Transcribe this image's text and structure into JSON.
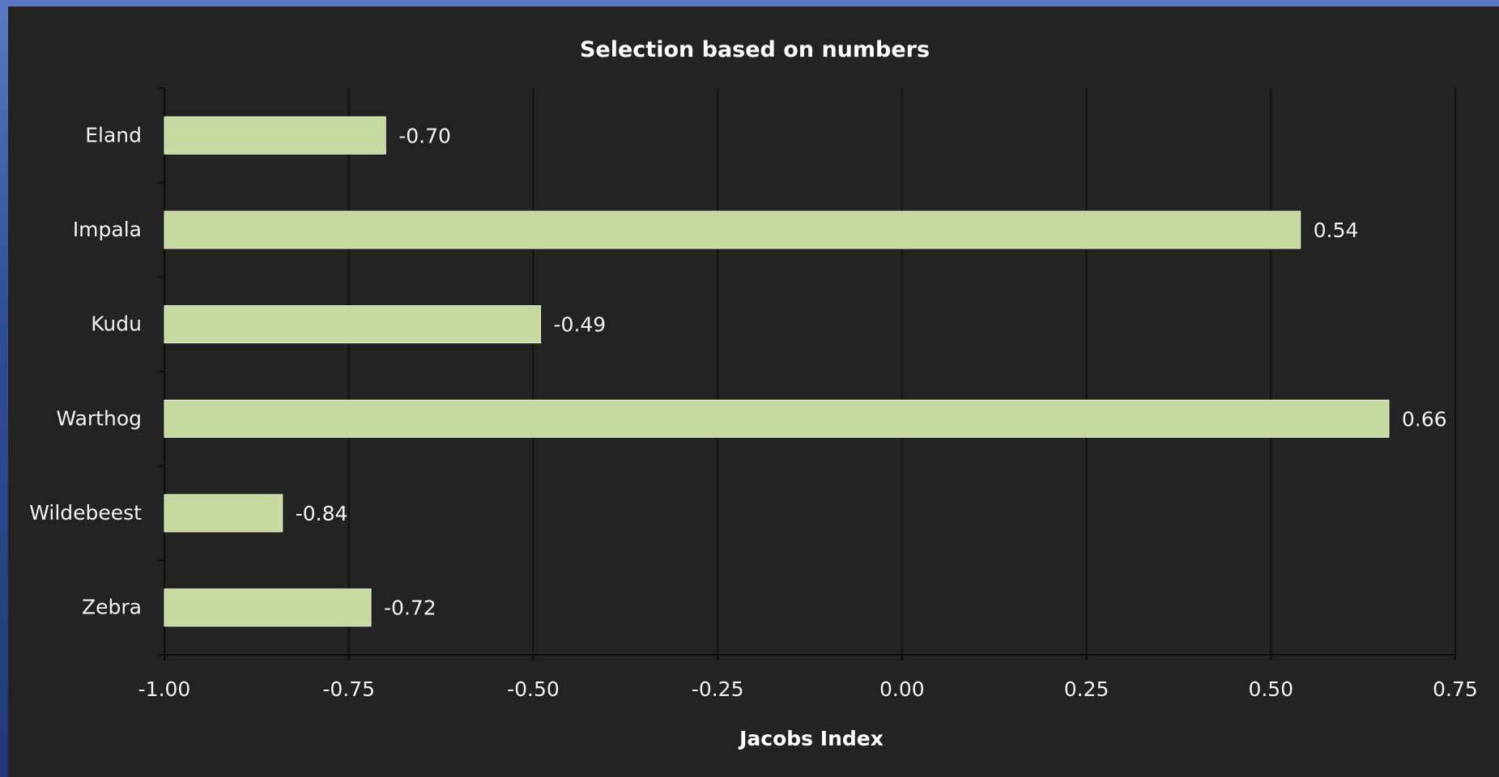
{
  "chart_data": {
    "type": "bar",
    "orientation": "horizontal",
    "title": "Selection based on numbers",
    "xlabel": "Jacobs Index",
    "ylabel": "",
    "categories": [
      "Eland",
      "Impala",
      "Kudu",
      "Warthog",
      "Wildebeest",
      "Zebra"
    ],
    "values": [
      -0.7,
      0.54,
      -0.49,
      0.66,
      -0.84,
      -0.72
    ],
    "data_labels": [
      "-0.70",
      "0.54",
      "-0.49",
      "0.66",
      "-0.84",
      "-0.72"
    ],
    "xlim": [
      -1.0,
      0.75
    ],
    "xticks": [
      -1.0,
      -0.75,
      -0.5,
      -0.25,
      0.0,
      0.25,
      0.5,
      0.75
    ],
    "xtick_labels": [
      "-1.00",
      "-0.75",
      "-0.50",
      "-0.25",
      "0.00",
      "0.25",
      "0.50",
      "0.75"
    ],
    "grid": true,
    "legend": "none",
    "colors": {
      "bar": "#c5d9a0",
      "bar_edge": "#e9f2d6",
      "background": "#232323",
      "gridline": "#111111",
      "axis": "#0d0d0d",
      "text": "#f2f2f2"
    }
  }
}
